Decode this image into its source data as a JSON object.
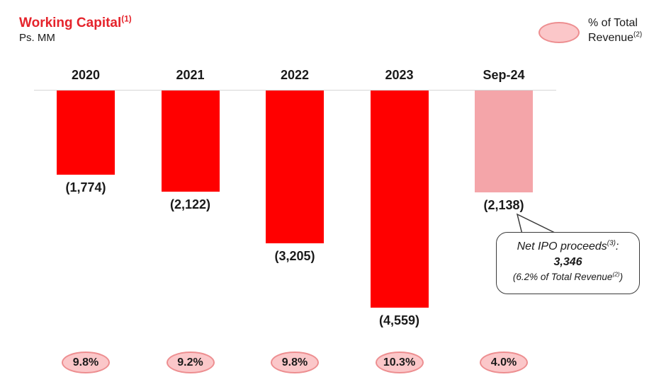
{
  "header": {
    "title": "Working Capital",
    "title_superscript": "(1)",
    "subtitle": "Ps. MM"
  },
  "legend": {
    "line1": "% of Total",
    "line2": "Revenue",
    "superscript": "(2)"
  },
  "chart_data": {
    "type": "bar",
    "title": "Working Capital",
    "unit": "Ps. MM",
    "categories": [
      "2020",
      "2021",
      "2022",
      "2023",
      "Sep-24"
    ],
    "values": [
      -1774,
      -2122,
      -3205,
      -4559,
      -2138
    ],
    "value_labels": [
      "(1,774)",
      "(2,122)",
      "(3,205)",
      "(4,559)",
      "(2,138)"
    ],
    "pct_of_total_revenue": [
      "9.8%",
      "9.2%",
      "9.8%",
      "10.3%",
      "4.0%"
    ],
    "bar_colors": [
      "#FF0000",
      "#FF0000",
      "#FF0000",
      "#FF0000",
      "#F4A5A9"
    ],
    "baseline": 0,
    "ylim": [
      -5000,
      0
    ],
    "grid": false,
    "orientation": "columns extend downward from zero baseline",
    "legend_position": "top-right"
  },
  "callout": {
    "intro": "Net IPO proceeds",
    "intro_superscript": "(3)",
    "intro_suffix": ":",
    "amount": "3,346",
    "note_prefix": "(6.2% of Total Revenue",
    "note_superscript": "(2)",
    "note_suffix": ")"
  },
  "colors": {
    "bar_red": "#FF0000",
    "bar_pink": "#F4A5A9",
    "oval_fill": "#FBC7C9",
    "oval_border": "#ED8E90",
    "title_red": "#E5232B",
    "baseline_gray": "#D6D6D6"
  }
}
